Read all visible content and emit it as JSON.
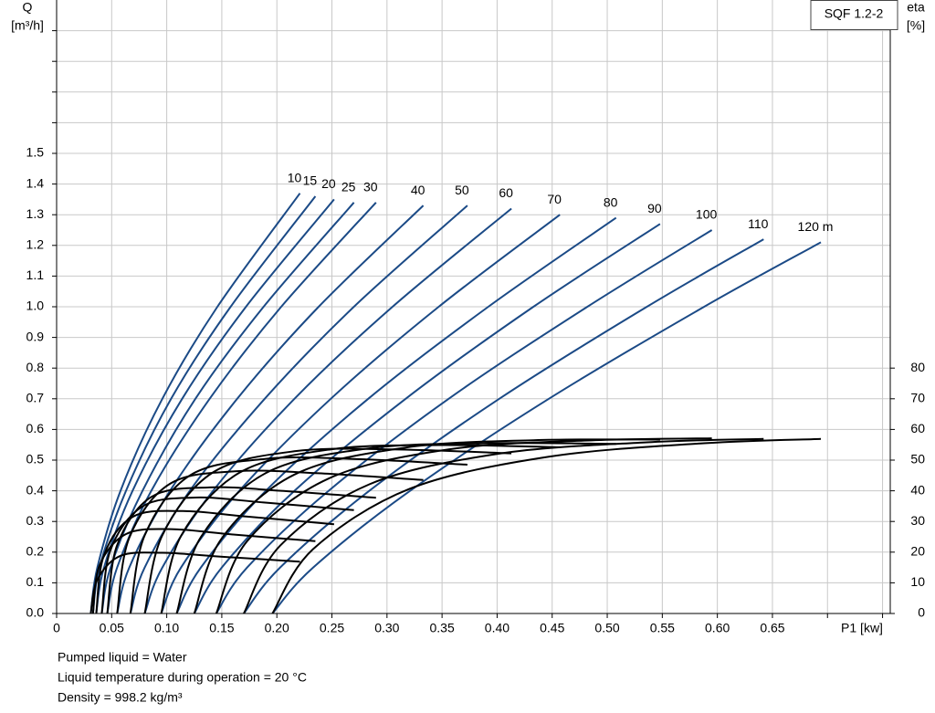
{
  "chart_data": {
    "type": "line",
    "title": "SQF 1.2-2",
    "ylabel": [
      "Q",
      "[m³/h]"
    ],
    "y2label": [
      "eta",
      "[%]"
    ],
    "xlabel": "P1 [kw]",
    "notes": [
      "Pumped liquid = Water",
      "Liquid temperature during operation = 20 °C",
      "Density = 998.2 kg/m³"
    ],
    "xlim": [
      0,
      0.757
    ],
    "xticks": [
      0,
      0.05,
      {
        "value": 0.1,
        "label": "0.10"
      },
      0.15,
      {
        "value": 0.2,
        "label": "0.20"
      },
      0.25,
      {
        "value": 0.3,
        "label": "0.30"
      },
      0.35,
      {
        "value": 0.4,
        "label": "0.40"
      },
      0.45,
      {
        "value": 0.5,
        "label": "0.50"
      },
      0.55,
      {
        "value": 0.6,
        "label": "0.60"
      },
      0.65
    ],
    "xgrid": [
      0.7,
      0.75
    ],
    "ylim": [
      0,
      2
    ],
    "yticks": [
      {
        "value": 0,
        "label": "0.0"
      },
      0.1,
      0.2,
      0.3,
      0.4,
      0.5,
      0.6,
      0.7,
      0.8,
      0.9,
      {
        "value": 1,
        "label": "1.0"
      },
      1.1,
      1.2,
      1.3,
      1.4,
      1.5
    ],
    "ygrid": [
      1.6,
      1.7,
      1.8,
      1.9
    ],
    "y2lim": [
      0,
      200
    ],
    "y2ticks": [
      0,
      10,
      20,
      30,
      40,
      50,
      60,
      70,
      80
    ],
    "grid": true,
    "series": [
      {
        "name": "10",
        "color": "#1b4a86",
        "x": [
          0.031,
          0.037,
          0.058,
          0.096,
          0.146,
          0.221
        ],
        "values": [
          0,
          0.15,
          0.4,
          0.7,
          1.0,
          1.37
        ]
      },
      {
        "name": "15",
        "color": "#1b4a86",
        "x": [
          0.033,
          0.039,
          0.063,
          0.104,
          0.158,
          0.235
        ],
        "values": [
          0,
          0.15,
          0.4,
          0.7,
          1.0,
          1.36
        ]
      },
      {
        "name": "20",
        "color": "#1b4a86",
        "x": [
          0.036,
          0.043,
          0.069,
          0.114,
          0.172,
          0.252
        ],
        "values": [
          0,
          0.15,
          0.4,
          0.7,
          1.0,
          1.35
        ]
      },
      {
        "name": "25",
        "color": "#1b4a86",
        "x": [
          0.041,
          0.049,
          0.078,
          0.126,
          0.188,
          0.27
        ],
        "values": [
          0,
          0.15,
          0.4,
          0.7,
          1.0,
          1.34
        ]
      },
      {
        "name": "30",
        "color": "#1b4a86",
        "x": [
          0.046,
          0.055,
          0.086,
          0.139,
          0.204,
          0.29
        ],
        "values": [
          0,
          0.15,
          0.4,
          0.7,
          1.0,
          1.34
        ]
      },
      {
        "name": "40",
        "color": "#1b4a86",
        "x": [
          0.055,
          0.066,
          0.103,
          0.164,
          0.238,
          0.333
        ],
        "values": [
          0,
          0.15,
          0.4,
          0.7,
          1.0,
          1.33
        ]
      },
      {
        "name": "50",
        "color": "#1b4a86",
        "x": [
          0.067,
          0.08,
          0.121,
          0.189,
          0.27,
          0.373
        ],
        "values": [
          0,
          0.15,
          0.4,
          0.7,
          1.0,
          1.33
        ]
      },
      {
        "name": "60",
        "color": "#1b4a86",
        "x": [
          0.08,
          0.096,
          0.142,
          0.216,
          0.305,
          0.413
        ],
        "values": [
          0,
          0.15,
          0.4,
          0.7,
          1.0,
          1.32
        ]
      },
      {
        "name": "70",
        "color": "#1b4a86",
        "x": [
          0.095,
          0.113,
          0.166,
          0.249,
          0.347,
          0.457
        ],
        "values": [
          0,
          0.15,
          0.4,
          0.7,
          1.0,
          1.3
        ]
      },
      {
        "name": "80",
        "color": "#1b4a86",
        "x": [
          0.109,
          0.131,
          0.19,
          0.283,
          0.392,
          0.508
        ],
        "values": [
          0,
          0.15,
          0.4,
          0.7,
          1.0,
          1.29
        ]
      },
      {
        "name": "90",
        "color": "#1b4a86",
        "x": [
          0.125,
          0.15,
          0.216,
          0.317,
          0.433,
          0.548
        ],
        "values": [
          0,
          0.15,
          0.4,
          0.7,
          1.0,
          1.27
        ]
      },
      {
        "name": "100",
        "color": "#1b4a86",
        "x": [
          0.145,
          0.173,
          0.247,
          0.356,
          0.482,
          0.595
        ],
        "values": [
          0,
          0.15,
          0.4,
          0.7,
          1.0,
          1.25
        ]
      },
      {
        "name": "110",
        "color": "#1b4a86",
        "x": [
          0.17,
          0.203,
          0.284,
          0.402,
          0.536,
          0.642
        ],
        "values": [
          0,
          0.15,
          0.4,
          0.7,
          1.0,
          1.22
        ]
      },
      {
        "name": "120 m",
        "color": "#1b4a86",
        "x": [
          0.196,
          0.233,
          0.321,
          0.447,
          0.588,
          0.694
        ],
        "values": [
          0,
          0.15,
          0.4,
          0.7,
          1.0,
          1.21
        ]
      },
      {
        "axis": "y2",
        "color": "#000000",
        "x": [
          0.031,
          0.037,
          0.058,
          0.096,
          0.146,
          0.221
        ],
        "values": [
          0,
          11.0,
          18.8,
          19.8,
          18.6,
          16.9
        ]
      },
      {
        "axis": "y2",
        "color": "#000000",
        "x": [
          0.033,
          0.039,
          0.063,
          0.104,
          0.158,
          0.235
        ],
        "values": [
          0,
          15.7,
          25.9,
          27.5,
          25.8,
          23.6
        ]
      },
      {
        "axis": "y2",
        "color": "#000000",
        "x": [
          0.036,
          0.043,
          0.069,
          0.114,
          0.172,
          0.252
        ],
        "values": [
          0,
          19.0,
          31.5,
          33.4,
          31.6,
          29.1
        ]
      },
      {
        "axis": "y2",
        "color": "#000000",
        "x": [
          0.041,
          0.049,
          0.078,
          0.126,
          0.188,
          0.27
        ],
        "values": [
          0,
          20.8,
          34.9,
          37.8,
          36.2,
          33.7
        ]
      },
      {
        "axis": "y2",
        "color": "#000000",
        "x": [
          0.046,
          0.055,
          0.086,
          0.139,
          0.204,
          0.29
        ],
        "values": [
          0,
          22.3,
          38.0,
          41.1,
          40.0,
          37.7
        ]
      },
      {
        "axis": "y2",
        "color": "#000000",
        "x": [
          0.055,
          0.066,
          0.103,
          0.164,
          0.238,
          0.333
        ],
        "values": [
          0,
          24.7,
          42.3,
          46.4,
          45.7,
          43.5
        ]
      },
      {
        "axis": "y2",
        "color": "#000000",
        "x": [
          0.067,
          0.08,
          0.121,
          0.189,
          0.27,
          0.373
        ],
        "values": [
          0,
          25.5,
          45.0,
          50.4,
          50.4,
          48.5
        ]
      },
      {
        "axis": "y2",
        "color": "#000000",
        "x": [
          0.08,
          0.096,
          0.142,
          0.216,
          0.305,
          0.413
        ],
        "values": [
          0,
          25.5,
          46.0,
          52.9,
          53.5,
          52.2
        ]
      },
      {
        "axis": "y2",
        "color": "#000000",
        "x": [
          0.095,
          0.113,
          0.166,
          0.249,
          0.347,
          0.457
        ],
        "values": [
          0,
          25.3,
          45.9,
          53.5,
          54.9,
          54.2
        ]
      },
      {
        "axis": "y2",
        "color": "#000000",
        "x": [
          0.109,
          0.131,
          0.19,
          0.283,
          0.392,
          0.508
        ],
        "values": [
          0,
          24.9,
          45.8,
          53.8,
          55.5,
          55.3
        ]
      },
      {
        "axis": "y2",
        "color": "#000000",
        "x": [
          0.125,
          0.15,
          0.216,
          0.317,
          0.433,
          0.548
        ],
        "values": [
          0,
          24.5,
          45.3,
          54.1,
          56.5,
          56.7
        ]
      },
      {
        "axis": "y2",
        "color": "#000000",
        "x": [
          0.145,
          0.173,
          0.247,
          0.356,
          0.482,
          0.595
        ],
        "values": [
          0,
          23.6,
          44.0,
          53.5,
          56.4,
          57.1
        ]
      },
      {
        "axis": "y2",
        "color": "#000000",
        "x": [
          0.17,
          0.203,
          0.284,
          0.402,
          0.536,
          0.642
        ],
        "values": [
          0,
          22.1,
          42.1,
          52.1,
          55.8,
          56.9
        ]
      },
      {
        "axis": "y2",
        "color": "#000000",
        "x": [
          0.196,
          0.233,
          0.321,
          0.447,
          0.588,
          0.694
        ],
        "values": [
          0,
          21.0,
          40.7,
          51.1,
          55.5,
          56.9
        ]
      }
    ]
  }
}
